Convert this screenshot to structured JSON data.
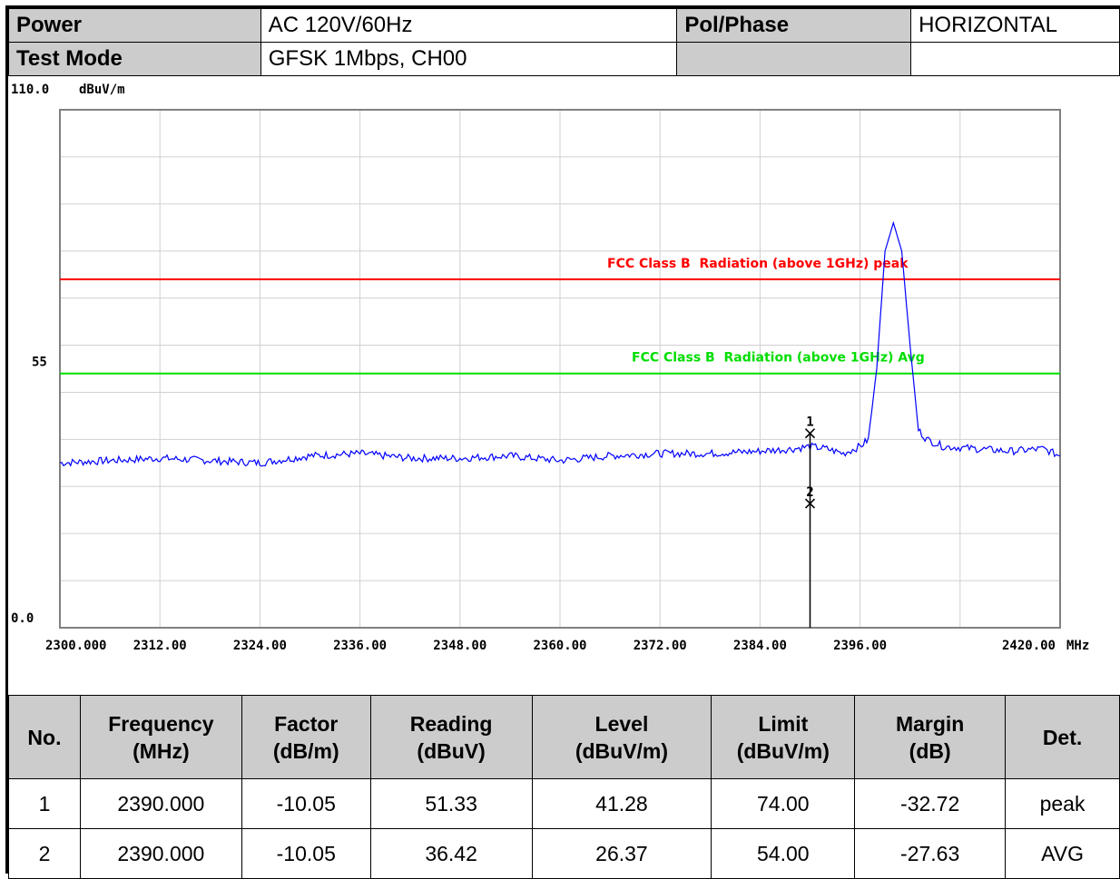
{
  "header": {
    "power_label": "Power",
    "power_value": "AC 120V/60Hz",
    "pol_label": "Pol/Phase",
    "pol_value": "HORIZONTAL",
    "mode_label": "Test Mode",
    "mode_value": "GFSK 1Mbps, CH00"
  },
  "chart_data": {
    "type": "line",
    "ylabel": "dBuV/m",
    "xunit": "MHz",
    "ylim": [
      0,
      110
    ],
    "xlim": [
      2300,
      2420
    ],
    "ytick_labels": [
      {
        "value": 110,
        "label": "110.0"
      },
      {
        "value": 55,
        "label": "55"
      },
      {
        "value": 0,
        "label": "0.0"
      }
    ],
    "xtick_labels": [
      {
        "value": 2300,
        "label": "2300.000"
      },
      {
        "value": 2312,
        "label": "2312.00"
      },
      {
        "value": 2324,
        "label": "2324.00"
      },
      {
        "value": 2336,
        "label": "2336.00"
      },
      {
        "value": 2348,
        "label": "2348.00"
      },
      {
        "value": 2360,
        "label": "2360.00"
      },
      {
        "value": 2372,
        "label": "2372.00"
      },
      {
        "value": 2384,
        "label": "2384.00"
      },
      {
        "value": 2396,
        "label": "2396.00"
      },
      {
        "value": 2420,
        "label": "2420.00"
      }
    ],
    "grid": true,
    "limits": [
      {
        "label": "FCC Class B  Radiation (above 1GHz) peak",
        "value": 74,
        "color": "#ff0000"
      },
      {
        "label": "FCC Class B  Radiation (above 1GHz) Avg",
        "value": 54,
        "color": "#00dd00"
      }
    ],
    "series": [
      {
        "color": "#0000ff",
        "x": [
          2300,
          2306,
          2312,
          2318,
          2324,
          2330,
          2336,
          2342,
          2348,
          2354,
          2360,
          2366,
          2372,
          2378,
          2384,
          2388,
          2390,
          2392,
          2394,
          2396,
          2397,
          2398,
          2399,
          2400,
          2401,
          2402,
          2403,
          2404,
          2406,
          2410,
          2414,
          2418,
          2420
        ],
        "y": [
          35,
          35.5,
          36,
          35.5,
          35,
          36.5,
          37,
          36,
          36,
          36.5,
          35.5,
          36.5,
          37,
          37,
          37.5,
          38,
          38.5,
          38,
          37,
          38.5,
          40,
          55,
          80,
          86,
          80,
          60,
          42,
          40,
          38.5,
          38,
          37.5,
          38,
          36.5
        ]
      }
    ],
    "markers": [
      {
        "label": "1",
        "x": 2390,
        "y": 41.28
      },
      {
        "label": "2",
        "x": 2390,
        "y": 26.37
      }
    ]
  },
  "results": {
    "headers": [
      [
        "No.",
        ""
      ],
      [
        "Frequency",
        "(MHz)"
      ],
      [
        "Factor",
        "(dB/m)"
      ],
      [
        "Reading",
        "(dBuV)"
      ],
      [
        "Level",
        "(dBuV/m)"
      ],
      [
        "Limit",
        "(dBuV/m)"
      ],
      [
        "Margin",
        "(dB)"
      ],
      [
        "Det.",
        ""
      ]
    ],
    "rows": [
      [
        "1",
        "2390.000",
        "-10.05",
        "51.33",
        "41.28",
        "74.00",
        "-32.72",
        "peak"
      ],
      [
        "2",
        "2390.000",
        "-10.05",
        "36.42",
        "26.37",
        "54.00",
        "-27.63",
        "AVG"
      ]
    ]
  }
}
